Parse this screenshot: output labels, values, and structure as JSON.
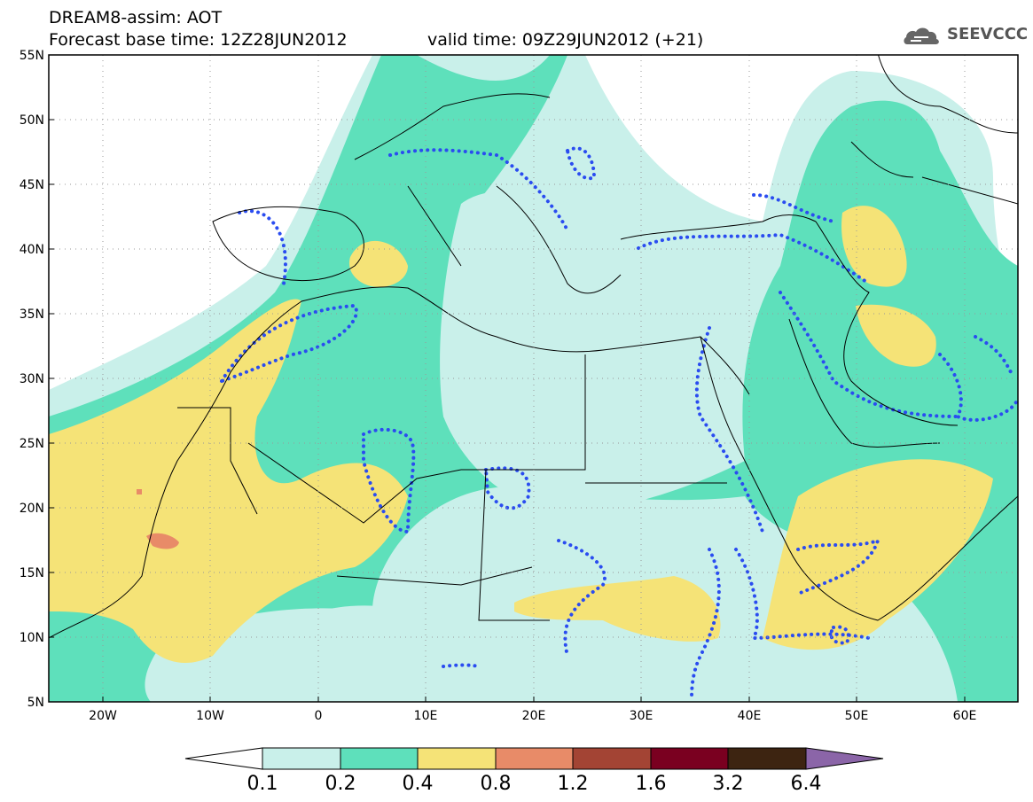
{
  "header": {
    "title_line1": "DREAM8-assim: AOT",
    "title_line2": "Forecast base time: 12Z28JUN2012",
    "valid_time": "valid time: 09Z29JUN2012 (+21)",
    "logo_text": "SEEVCCC"
  },
  "map": {
    "lon_range": [
      -25,
      65
    ],
    "lat_range": [
      5,
      55
    ],
    "lat_labels": [
      "55N",
      "50N",
      "45N",
      "40N",
      "35N",
      "30N",
      "25N",
      "20N",
      "15N",
      "10N",
      "5N"
    ],
    "lon_labels": [
      "20W",
      "10W",
      "0",
      "10E",
      "20E",
      "30E",
      "40E",
      "50E",
      "60E"
    ],
    "grid": "dotted",
    "dotted_contour_color": "#2a4cf0"
  },
  "colorbar": {
    "levels": [
      "0.1",
      "0.2",
      "0.4",
      "0.8",
      "1.2",
      "1.6",
      "3.2",
      "6.4"
    ],
    "colors": [
      "#ffffff",
      "#c9f0ea",
      "#5ee0bb",
      "#f5e377",
      "#e88b68",
      "#a34434",
      "#7a0020",
      "#3d2411",
      "#8b65a8"
    ]
  }
}
